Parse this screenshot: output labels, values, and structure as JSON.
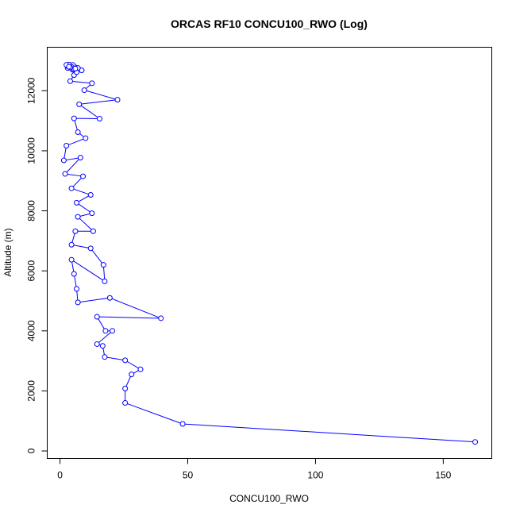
{
  "chart_data": {
    "type": "line",
    "title": "ORCAS RF10 CONCU100_RWO (Log)",
    "xlabel": "CONCU100_RWO",
    "ylabel": "Altitude (m)",
    "xlim": [
      -5,
      169
    ],
    "ylim": [
      -250,
      13450
    ],
    "xticks": [
      0,
      50,
      100,
      150
    ],
    "yticks": [
      0,
      2000,
      4000,
      6000,
      8000,
      10000,
      12000
    ],
    "grid": false,
    "colors": {
      "series": "#0000ff"
    },
    "series": [
      {
        "points": [
          [
            162.5,
            300
          ],
          [
            48,
            900
          ],
          [
            25.5,
            1600
          ],
          [
            25.5,
            2080
          ],
          [
            28,
            2550
          ],
          [
            31.5,
            2720
          ],
          [
            25.5,
            3020
          ],
          [
            17.5,
            3130
          ],
          [
            16.7,
            3500
          ],
          [
            14.5,
            3560
          ],
          [
            20.5,
            4000
          ],
          [
            17.8,
            4000
          ],
          [
            14.5,
            4470
          ],
          [
            39.5,
            4420
          ],
          [
            19.5,
            5100
          ],
          [
            7,
            4950
          ],
          [
            6.5,
            5400
          ],
          [
            5.5,
            5900
          ],
          [
            4.5,
            6370
          ],
          [
            17.5,
            5650
          ],
          [
            17,
            6200
          ],
          [
            12,
            6750
          ],
          [
            4.5,
            6870
          ],
          [
            6,
            7320
          ],
          [
            13,
            7320
          ],
          [
            7,
            7800
          ],
          [
            12.5,
            7920
          ],
          [
            6.5,
            8270
          ],
          [
            12,
            8530
          ],
          [
            4.5,
            8750
          ],
          [
            9,
            9150
          ],
          [
            2,
            9230
          ],
          [
            8,
            9770
          ],
          [
            1.5,
            9680
          ],
          [
            2.5,
            10170
          ],
          [
            10,
            10420
          ],
          [
            7,
            10620
          ],
          [
            5.5,
            11080
          ],
          [
            15.5,
            11070
          ],
          [
            7.5,
            11550
          ],
          [
            22.5,
            11700
          ],
          [
            9.5,
            12020
          ],
          [
            12.5,
            12250
          ],
          [
            4,
            12320
          ],
          [
            5.5,
            12520
          ],
          [
            6.5,
            12620
          ],
          [
            8.5,
            12680
          ],
          [
            5,
            12700
          ],
          [
            3,
            12760
          ],
          [
            4.5,
            12740
          ],
          [
            6,
            12780
          ],
          [
            3,
            12820
          ],
          [
            4,
            12850
          ],
          [
            5,
            12860
          ],
          [
            7,
            12760
          ],
          [
            4.5,
            12800
          ],
          [
            3.5,
            12870
          ],
          [
            2.5,
            12860
          ],
          [
            5.5,
            12720
          ],
          [
            4,
            12780
          ],
          [
            6,
            12740
          ],
          [
            3.5,
            12800
          ]
        ]
      }
    ]
  }
}
